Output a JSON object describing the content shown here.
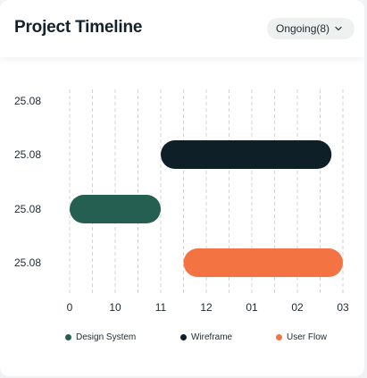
{
  "header": {
    "title": "Project Timeline",
    "filter_label": "Ongoing(8)"
  },
  "colors": {
    "design_system": "#245f52",
    "wireframe": "#0e1f27",
    "user_flow": "#f47343",
    "grid": "#cfd3d6",
    "text": "#1d2a30"
  },
  "chart_data": {
    "type": "gantt",
    "title": "Project Timeline",
    "x_ticks": [
      "0",
      "10",
      "11",
      "12",
      "01",
      "02",
      "03"
    ],
    "y_labels": [
      "25.08",
      "25.08",
      "25.08",
      "25.08"
    ],
    "grid": "vertical dashed",
    "legend_position": "bottom",
    "series": [
      {
        "name": "Design System",
        "color": "#245f52",
        "row": 3,
        "start": 0.0,
        "end": 2.0
      },
      {
        "name": "Wireframe",
        "color": "#0e1f27",
        "row": 2,
        "start": 2.0,
        "end": 5.75
      },
      {
        "name": "User Flow",
        "color": "#f47343",
        "row": 4,
        "start": 2.5,
        "end": 6.0
      }
    ]
  }
}
